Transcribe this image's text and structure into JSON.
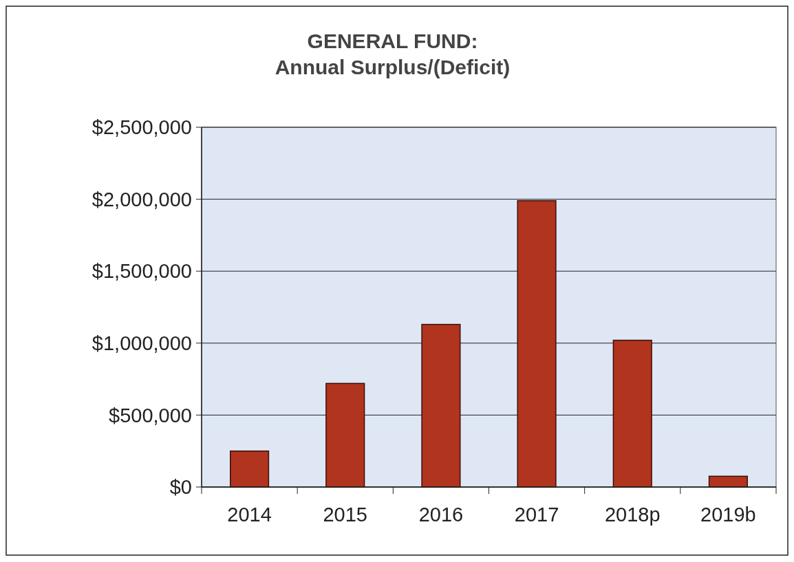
{
  "chart_data": {
    "type": "bar",
    "title": "GENERAL FUND:",
    "subtitle": "Annual Surplus/(Deficit)",
    "categories": [
      "2014",
      "2015",
      "2016",
      "2017",
      "2018p",
      "2019b"
    ],
    "values": [
      250000,
      720000,
      1130000,
      1990000,
      1020000,
      75000
    ],
    "color": "#b0341e",
    "ylim": [
      0,
      2500000
    ],
    "yticks": [
      {
        "value": 0,
        "label": "$0"
      },
      {
        "value": 500000,
        "label": "$500,000"
      },
      {
        "value": 1000000,
        "label": "$1,000,000"
      },
      {
        "value": 1500000,
        "label": "$1,500,000"
      },
      {
        "value": 2000000,
        "label": "$2,000,000"
      },
      {
        "value": 2500000,
        "label": "$2,500,000"
      }
    ],
    "grid": "y"
  }
}
